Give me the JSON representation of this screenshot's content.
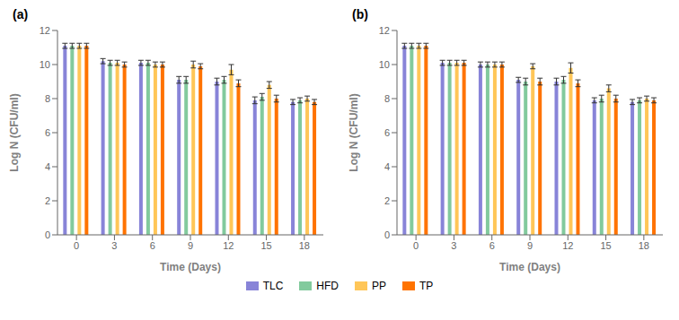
{
  "chart_data": [
    {
      "type": "bar",
      "title": "(a)",
      "xlabel": "Time (Days)",
      "ylabel": "Log N (CFU/ml)",
      "categories": [
        "0",
        "3",
        "6",
        "9",
        "12",
        "15",
        "18"
      ],
      "series": [
        {
          "name": "TLC",
          "color": "#8884d8",
          "values": [
            11.1,
            10.2,
            10.1,
            9.1,
            9.0,
            7.9,
            7.8
          ],
          "errors": [
            0.15,
            0.15,
            0.15,
            0.2,
            0.2,
            0.2,
            0.15
          ]
        },
        {
          "name": "HFD",
          "color": "#82ca9d",
          "values": [
            11.1,
            10.1,
            10.1,
            9.1,
            9.1,
            8.1,
            7.9
          ],
          "errors": [
            0.15,
            0.15,
            0.15,
            0.2,
            0.2,
            0.2,
            0.15
          ]
        },
        {
          "name": "PP",
          "color": "#ffc658",
          "values": [
            11.1,
            10.1,
            10.0,
            10.0,
            9.7,
            8.8,
            8.0
          ],
          "errors": [
            0.15,
            0.15,
            0.15,
            0.2,
            0.3,
            0.2,
            0.15
          ]
        },
        {
          "name": "TP",
          "color": "#ff7300",
          "values": [
            11.1,
            10.0,
            10.0,
            9.9,
            8.9,
            8.0,
            7.8
          ],
          "errors": [
            0.15,
            0.15,
            0.15,
            0.15,
            0.2,
            0.2,
            0.15
          ]
        }
      ],
      "ylim": [
        0,
        12
      ],
      "yticks": [
        0,
        2,
        4,
        6,
        8,
        10,
        12
      ],
      "grid": false,
      "legend": "bottom"
    },
    {
      "type": "bar",
      "title": "(b)",
      "xlabel": "Time (Days)",
      "ylabel": "Log N (CFU/ml)",
      "categories": [
        "0",
        "3",
        "6",
        "9",
        "12",
        "15",
        "18"
      ],
      "series": [
        {
          "name": "TLC",
          "color": "#8884d8",
          "values": [
            11.1,
            10.1,
            10.0,
            9.1,
            9.0,
            7.9,
            7.8
          ],
          "errors": [
            0.15,
            0.15,
            0.15,
            0.15,
            0.2,
            0.15,
            0.15
          ]
        },
        {
          "name": "HFD",
          "color": "#82ca9d",
          "values": [
            11.1,
            10.1,
            10.0,
            9.0,
            9.1,
            8.0,
            7.9
          ],
          "errors": [
            0.15,
            0.15,
            0.15,
            0.2,
            0.2,
            0.2,
            0.15
          ]
        },
        {
          "name": "PP",
          "color": "#ffc658",
          "values": [
            11.1,
            10.1,
            10.0,
            9.9,
            9.8,
            8.6,
            8.0
          ],
          "errors": [
            0.15,
            0.15,
            0.15,
            0.15,
            0.3,
            0.2,
            0.15
          ]
        },
        {
          "name": "TP",
          "color": "#ff7300",
          "values": [
            11.1,
            10.1,
            10.0,
            9.0,
            8.9,
            8.0,
            7.9
          ],
          "errors": [
            0.15,
            0.15,
            0.15,
            0.2,
            0.2,
            0.2,
            0.15
          ]
        }
      ],
      "ylim": [
        0,
        12
      ],
      "yticks": [
        0,
        2,
        4,
        6,
        8,
        10,
        12
      ],
      "grid": false,
      "legend": "bottom"
    }
  ]
}
